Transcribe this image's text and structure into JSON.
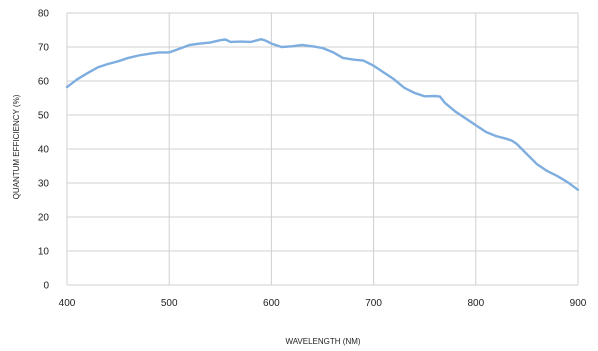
{
  "chart_data": {
    "type": "line",
    "title": "",
    "xlabel": "WAVELENGTH (NM)",
    "ylabel": "QUANTUM EFFICIENCY (%)",
    "xlim": [
      400,
      900
    ],
    "ylim": [
      0,
      80
    ],
    "x_ticks": [
      400,
      500,
      600,
      700,
      800,
      900
    ],
    "y_ticks": [
      0,
      10,
      20,
      30,
      40,
      50,
      60,
      70,
      80
    ],
    "grid": true,
    "legend": "none",
    "series": [
      {
        "color": "#7eaee0",
        "x": [
          400,
          410,
          420,
          430,
          440,
          450,
          460,
          470,
          480,
          490,
          500,
          510,
          520,
          530,
          540,
          550,
          555,
          560,
          570,
          580,
          590,
          595,
          600,
          610,
          620,
          630,
          640,
          650,
          660,
          670,
          680,
          690,
          700,
          710,
          720,
          730,
          740,
          750,
          760,
          765,
          770,
          780,
          790,
          800,
          810,
          820,
          830,
          835,
          840,
          850,
          860,
          870,
          880,
          890,
          900
        ],
        "y": [
          58.2,
          60.5,
          62.3,
          64.0,
          65.0,
          65.8,
          66.8,
          67.5,
          68.0,
          68.4,
          68.4,
          69.5,
          70.6,
          71.0,
          71.3,
          72.0,
          72.2,
          71.5,
          71.6,
          71.5,
          72.3,
          71.8,
          71.0,
          70.0,
          70.2,
          70.6,
          70.2,
          69.7,
          68.5,
          66.8,
          66.3,
          66.0,
          64.5,
          62.5,
          60.5,
          58.0,
          56.5,
          55.5,
          55.6,
          55.4,
          53.5,
          51.0,
          49.0,
          47.0,
          45.0,
          43.8,
          43.0,
          42.5,
          41.5,
          38.5,
          35.5,
          33.5,
          32.0,
          30.2,
          28.0
        ]
      }
    ]
  }
}
